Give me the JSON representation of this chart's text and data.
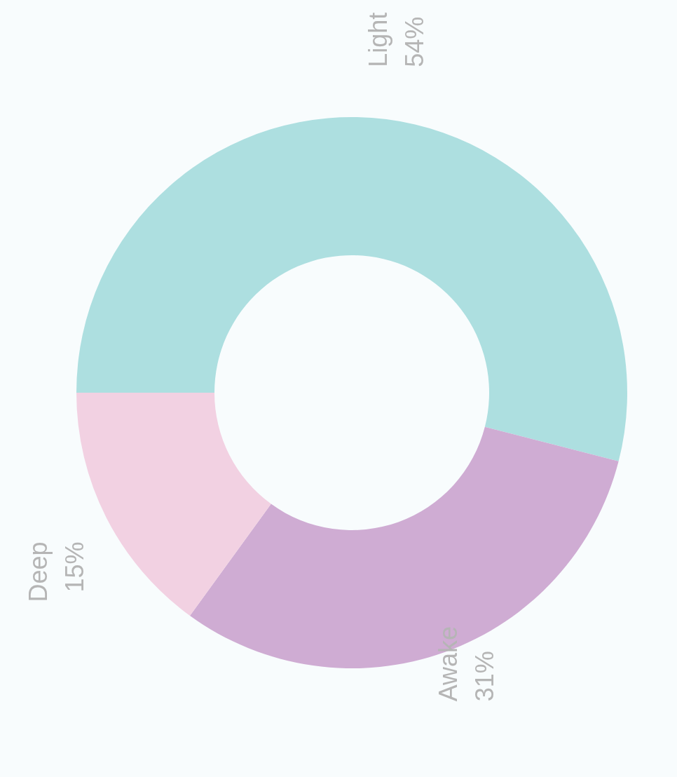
{
  "chart_data": {
    "type": "donut",
    "categories": [
      "Light",
      "Awake",
      "Deep"
    ],
    "values": [
      54,
      31,
      15
    ],
    "colors": [
      "#addfe0",
      "#cfacd3",
      "#f2d1e2"
    ],
    "value_labels": [
      "54%",
      "31%",
      "15%"
    ],
    "legend": false
  }
}
